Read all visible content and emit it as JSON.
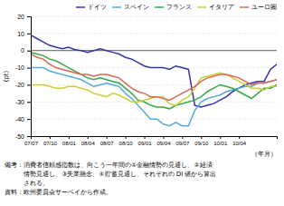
{
  "chart_data": {
    "type": "line",
    "ylabel": "(pt)",
    "xlabel": "（年月）",
    "categories": [
      "07/07",
      null,
      null,
      "07/10",
      null,
      null,
      "08/01",
      null,
      null,
      "08/04",
      null,
      null,
      "08/07",
      null,
      null,
      "08/10",
      null,
      null,
      "09/01",
      null,
      null,
      "09/04",
      null,
      null,
      "09/07",
      null,
      null,
      "09/10",
      null,
      null,
      "10/01",
      null,
      null,
      "10/04",
      null,
      null,
      null,
      null,
      null,
      null
    ],
    "series": [
      {
        "name": "ドイツ",
        "color": "#3333aa",
        "values": [
          9,
          7,
          5,
          3,
          2,
          1,
          2,
          0.5,
          0,
          -1,
          0,
          1,
          0,
          -1,
          -2,
          -4,
          -5,
          -7,
          -9,
          -10,
          -10,
          -10,
          -11,
          -9,
          -10,
          -11,
          -32,
          -33,
          -32,
          -31,
          -29,
          -27,
          -24,
          -22,
          -20,
          -19,
          -18,
          -18,
          -11,
          -8
        ]
      },
      {
        "name": "スペイン",
        "color": "#55aadd",
        "values": [
          -10,
          -10,
          -10,
          -12,
          -13,
          -14,
          -15,
          -16,
          -17,
          -19,
          -21,
          -20,
          -19,
          -20,
          -21,
          -25,
          -28,
          -32,
          -36,
          -40,
          -40,
          -43,
          -44,
          -42,
          -44,
          -44,
          -35,
          -30,
          -28,
          -27,
          -26,
          -24,
          -23,
          -22,
          -21,
          -21,
          -19,
          -19,
          -18,
          -17
        ]
      },
      {
        "name": "フランス",
        "color": "#33aa44",
        "values": [
          -1,
          -2,
          -3,
          -5,
          -6,
          -8,
          -10,
          -12,
          -14,
          -16,
          -17,
          -16,
          -17,
          -18,
          -19,
          -22,
          -25,
          -29,
          -30,
          -32,
          -33,
          -33,
          -34,
          -32,
          -31,
          -30,
          -29,
          -27,
          -24,
          -22,
          -20,
          -21,
          -22,
          -24,
          -26,
          -28,
          -25,
          -22,
          -22,
          -20
        ]
      },
      {
        "name": "イタリア",
        "color": "#cccc33",
        "values": [
          -20,
          -20,
          -20,
          -21,
          -22,
          -22,
          -21,
          -21,
          -22,
          -23,
          -25,
          -26,
          -27,
          -25,
          -26,
          -28,
          -30,
          -30,
          -29,
          -28,
          -27,
          -27,
          -31,
          -32,
          -29,
          -27,
          -22,
          -16,
          -15,
          -14,
          -13,
          -14,
          -16,
          -18,
          -20,
          -22,
          -22,
          -23,
          -21,
          -21
        ]
      },
      {
        "name": "ユーロ圏",
        "color": "#dd6655",
        "values": [
          -2,
          -4,
          -5,
          -8,
          -10,
          -11,
          -12,
          -13,
          -14,
          -14,
          -15,
          -14,
          -14,
          -15,
          -16,
          -19,
          -22,
          -24,
          -25,
          -27,
          -27,
          -28,
          -29,
          -27,
          -25,
          -23,
          -21,
          -18,
          -16,
          -15,
          -14,
          -14,
          -15,
          -16,
          -18,
          -20,
          -19,
          -19,
          -18,
          -17
        ]
      }
    ],
    "ylim": [
      -50,
      20
    ],
    "yticks": [
      20,
      10,
      0,
      -10,
      -20,
      -30,
      -40,
      -50
    ],
    "grid": true,
    "legend": "upper right",
    "annotations": [
      "備考：消費者信頼感指数は、向こう一年間の①金融情勢の見通し、②経済",
      "　　　情勢見通し、③失業懸念、④貯蓄見通し、それぞれの DI 値から算出",
      "　　　される。",
      "資料：欧州委員会サーベイから作成。"
    ]
  }
}
